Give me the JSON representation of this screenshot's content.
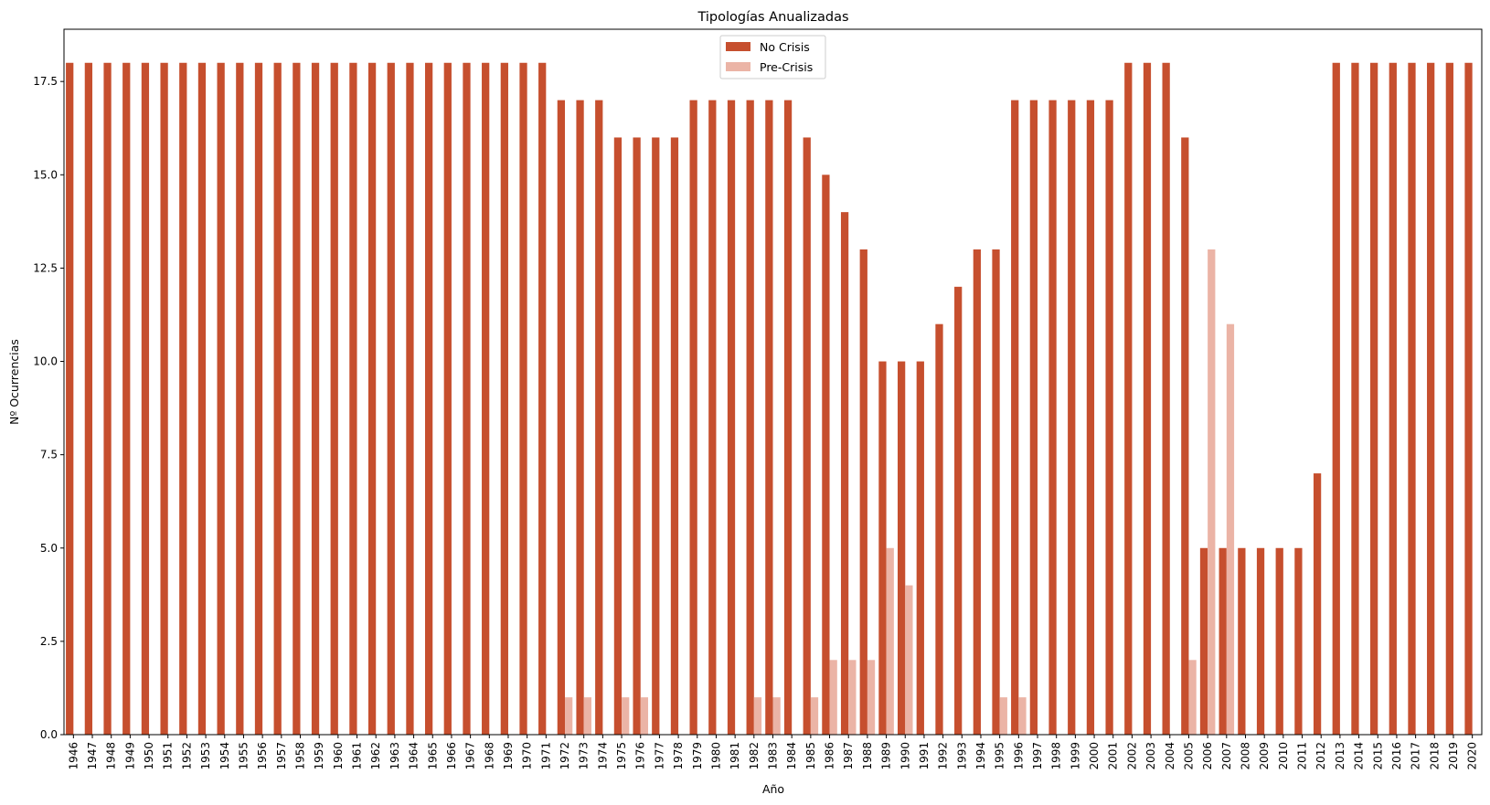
{
  "chart_data": {
    "type": "bar",
    "title": "Tipologías Anualizadas",
    "xlabel": "Año",
    "ylabel": "Nº Ocurrencias",
    "ylim": [
      0,
      18.9
    ],
    "yticks": [
      "0.0",
      "2.5",
      "5.0",
      "7.5",
      "10.0",
      "12.5",
      "15.0",
      "17.5"
    ],
    "legend_position": "top-center",
    "colors": {
      "No Crisis": "#c64f2e",
      "Pre-Crisis": "#ebb4a6"
    },
    "categories": [
      "1946",
      "1947",
      "1948",
      "1949",
      "1950",
      "1951",
      "1952",
      "1953",
      "1954",
      "1955",
      "1956",
      "1957",
      "1958",
      "1959",
      "1960",
      "1961",
      "1962",
      "1963",
      "1964",
      "1965",
      "1966",
      "1967",
      "1968",
      "1969",
      "1970",
      "1971",
      "1972",
      "1973",
      "1974",
      "1975",
      "1976",
      "1977",
      "1978",
      "1979",
      "1980",
      "1981",
      "1982",
      "1983",
      "1984",
      "1985",
      "1986",
      "1987",
      "1988",
      "1989",
      "1990",
      "1991",
      "1992",
      "1993",
      "1994",
      "1995",
      "1996",
      "1997",
      "1998",
      "1999",
      "2000",
      "2001",
      "2002",
      "2003",
      "2004",
      "2005",
      "2006",
      "2007",
      "2008",
      "2009",
      "2010",
      "2011",
      "2012",
      "2013",
      "2014",
      "2015",
      "2016",
      "2017",
      "2018",
      "2019",
      "2020"
    ],
    "series": [
      {
        "name": "No Crisis",
        "values": [
          18,
          18,
          18,
          18,
          18,
          18,
          18,
          18,
          18,
          18,
          18,
          18,
          18,
          18,
          18,
          18,
          18,
          18,
          18,
          18,
          18,
          18,
          18,
          18,
          18,
          18,
          17,
          17,
          17,
          16,
          16,
          16,
          16,
          17,
          17,
          17,
          17,
          17,
          17,
          16,
          15,
          14,
          13,
          10,
          10,
          10,
          11,
          12,
          13,
          13,
          17,
          17,
          17,
          17,
          17,
          17,
          18,
          18,
          18,
          16,
          5,
          5,
          5,
          5,
          5,
          5,
          7,
          18,
          18,
          18,
          18,
          18,
          18,
          18,
          18
        ]
      },
      {
        "name": "Pre-Crisis",
        "values": [
          0,
          0,
          0,
          0,
          0,
          0,
          0,
          0,
          0,
          0,
          0,
          0,
          0,
          0,
          0,
          0,
          0,
          0,
          0,
          0,
          0,
          0,
          0,
          0,
          0,
          0,
          1,
          1,
          0,
          1,
          1,
          0,
          0,
          0,
          0,
          0,
          1,
          1,
          0,
          1,
          2,
          2,
          2,
          5,
          4,
          0,
          0,
          0,
          0,
          1,
          1,
          0,
          0,
          0,
          0,
          0,
          0,
          0,
          0,
          2,
          13,
          11,
          0,
          0,
          0,
          0,
          0,
          0,
          0,
          0,
          0,
          0,
          0,
          0,
          0
        ]
      }
    ]
  }
}
